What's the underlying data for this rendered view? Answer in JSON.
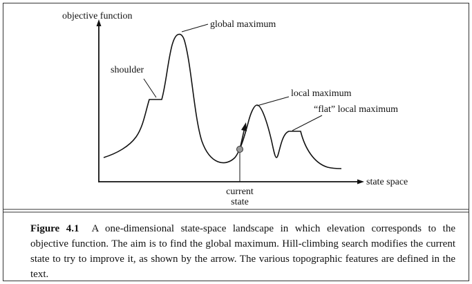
{
  "diagram": {
    "y_axis_label": "objective function",
    "x_axis_label": "state space",
    "labels": {
      "global_maximum": "global maximum",
      "shoulder": "shoulder",
      "local_maximum": "local maximum",
      "flat_local_maximum": "“flat” local maximum",
      "current_state_line1": "current",
      "current_state_line2": "state"
    }
  },
  "caption": {
    "figure_number": "Figure 4.1",
    "text": "A one-dimensional state-space landscape in which elevation corresponds to the objective function. The aim is to find the global maximum. Hill-climbing search modifies the current state to try to improve it, as shown by the arrow. The various topographic features are defined in the text."
  }
}
